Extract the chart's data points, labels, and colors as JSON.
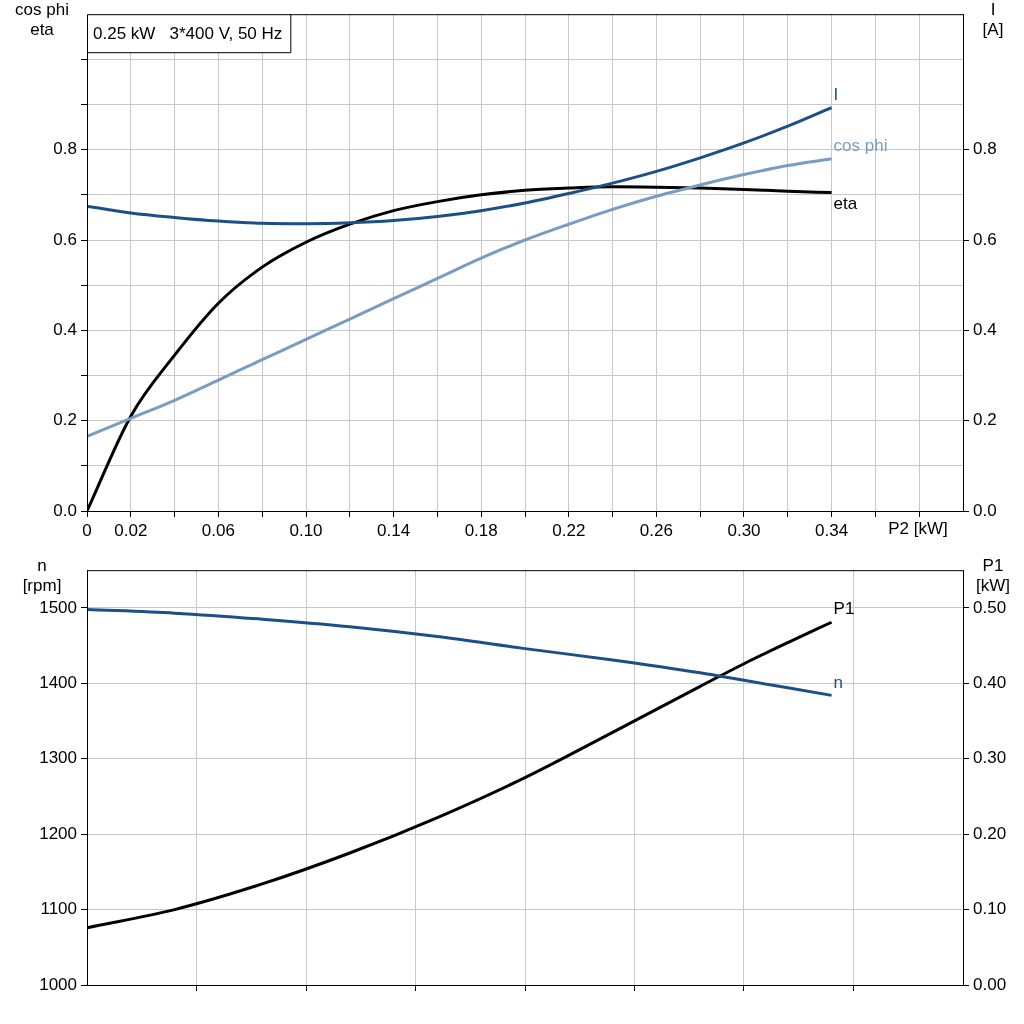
{
  "chart_data": [
    {
      "type": "line",
      "title": "0.25 kW   3*400 V, 50 Hz",
      "xlabel": "P2 [kW]",
      "ylabel": "cos phi\neta",
      "y2label": "I\n[A]",
      "grid": true,
      "legend": false,
      "marker": "none",
      "line_style": "solid",
      "xlim": [
        0,
        0.4
      ],
      "xticks": [
        0,
        0.02,
        {
          "value": 0.04,
          "label": null
        },
        0.06,
        {
          "value": 0.08,
          "label": null
        },
        {
          "value": 0.1,
          "label": "0.10"
        },
        {
          "value": 0.12,
          "label": null
        },
        0.14,
        {
          "value": 0.16,
          "label": null
        },
        0.18,
        {
          "value": 0.2,
          "label": null
        },
        0.22,
        {
          "value": 0.24,
          "label": null
        },
        0.26,
        {
          "value": 0.28,
          "label": null
        },
        {
          "value": 0.3,
          "label": "0.30"
        },
        {
          "value": 0.32,
          "label": null
        },
        0.34,
        {
          "value": 0.36,
          "label": null
        },
        {
          "value": 0.38,
          "label": null
        }
      ],
      "ylim": [
        0,
        1.1
      ],
      "yticks": [
        {
          "value": 0,
          "label": "0.0"
        },
        {
          "value": 0.1,
          "label": null
        },
        0.2,
        {
          "value": 0.3,
          "label": null
        },
        0.4,
        {
          "value": 0.5,
          "label": null
        },
        0.6,
        {
          "value": 0.7,
          "label": null
        },
        0.8,
        {
          "value": 0.9,
          "label": null
        },
        {
          "value": 1.0,
          "label": null
        }
      ],
      "y2lim": [
        0,
        1.1
      ],
      "y2ticks": [
        {
          "value": 0,
          "label": "0.0"
        },
        0.2,
        0.4,
        0.6,
        0.8
      ],
      "x": [
        0,
        0.02,
        0.04,
        0.06,
        0.08,
        0.1,
        0.12,
        0.14,
        0.16,
        0.18,
        0.2,
        0.22,
        0.24,
        0.26,
        0.28,
        0.3,
        0.32,
        0.34
      ],
      "series": [
        {
          "name": "I",
          "color": "#1c4f86",
          "axis": "y2",
          "values": [
            0.675,
            0.66,
            0.65,
            0.642,
            0.637,
            0.636,
            0.638,
            0.643,
            0.652,
            0.665,
            0.682,
            0.703,
            0.726,
            0.752,
            0.782,
            0.815,
            0.852,
            0.893
          ]
        },
        {
          "name": "cos phi",
          "color": "#7a9cc0",
          "values": [
            0.165,
            0.205,
            0.245,
            0.29,
            0.335,
            0.38,
            0.425,
            0.47,
            0.515,
            0.56,
            0.6,
            0.635,
            0.668,
            0.697,
            0.722,
            0.745,
            0.765,
            0.78
          ]
        },
        {
          "name": "eta",
          "color": "#000000",
          "values": [
            0,
            0.21,
            0.345,
            0.46,
            0.54,
            0.595,
            0.635,
            0.665,
            0.685,
            0.7,
            0.71,
            0.715,
            0.718,
            0.717,
            0.715,
            0.712,
            0.708,
            0.705
          ]
        }
      ]
    },
    {
      "type": "line",
      "ylabel": "n\n[rpm]",
      "y2label": "P1\n[kW]",
      "grid": true,
      "legend": false,
      "marker": "none",
      "line_style": "solid",
      "tick_labels": "y",
      "xlim": [
        0,
        0.4
      ],
      "xticks": [
        {
          "value": 0.05,
          "label": null
        },
        {
          "value": 0.1,
          "label": null
        },
        {
          "value": 0.15,
          "label": null
        },
        {
          "value": 0.2,
          "label": null
        },
        {
          "value": 0.25,
          "label": null
        },
        {
          "value": 0.3,
          "label": null
        },
        {
          "value": 0.35,
          "label": null
        }
      ],
      "ylim": [
        1000,
        1550
      ],
      "yticks": [
        1000,
        1100,
        1200,
        1300,
        1400,
        1500
      ],
      "y2lim": [
        0,
        0.55
      ],
      "y2ticks": [
        {
          "value": 0,
          "label": "0.00"
        },
        {
          "value": 0.1,
          "label": "0.10"
        },
        {
          "value": 0.2,
          "label": "0.20"
        },
        {
          "value": 0.3,
          "label": "0.30"
        },
        {
          "value": 0.4,
          "label": "0.40"
        },
        {
          "value": 0.5,
          "label": "0.50"
        }
      ],
      "x": [
        0,
        0.04,
        0.08,
        0.12,
        0.16,
        0.2,
        0.24,
        0.28,
        0.3,
        0.32,
        0.34
      ],
      "series": [
        {
          "name": "n",
          "color": "#1c4f86",
          "values": [
            1498,
            1493,
            1485,
            1475,
            1462,
            1446,
            1431,
            1414,
            1404,
            1394,
            1384
          ]
        },
        {
          "name": "P1",
          "color": "#000000",
          "axis": "y2",
          "values": [
            0.076,
            0.1,
            0.134,
            0.175,
            0.222,
            0.275,
            0.335,
            0.396,
            0.426,
            0.454,
            0.481
          ]
        }
      ]
    }
  ]
}
